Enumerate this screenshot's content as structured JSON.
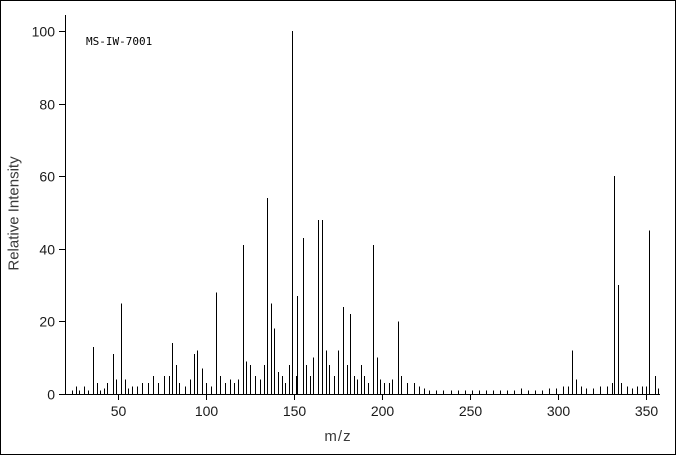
{
  "figure": {
    "background": "#ffffff",
    "line_color": "#000000",
    "tick_text_color": "#1a1a1a",
    "axis_label_color": "#3a3a3a"
  },
  "chart_data": {
    "type": "bar",
    "subtype": "mass-spectrum",
    "title": "",
    "annotation": "MS-IW-7001",
    "xlabel": "m/z",
    "ylabel": "Relative Intensity",
    "xlim": [
      20,
      358
    ],
    "ylim": [
      0,
      100
    ],
    "x_ticks": [
      50,
      100,
      150,
      200,
      250,
      300,
      350
    ],
    "y_ticks": [
      0,
      20,
      40,
      60,
      80,
      100
    ],
    "grid": false,
    "legend": false,
    "peaks": [
      [
        24,
        1
      ],
      [
        26,
        2
      ],
      [
        28,
        1
      ],
      [
        31,
        2
      ],
      [
        33,
        1
      ],
      [
        36,
        13
      ],
      [
        38,
        3
      ],
      [
        40,
        1
      ],
      [
        42,
        1.5
      ],
      [
        44,
        3
      ],
      [
        47,
        11
      ],
      [
        49,
        4
      ],
      [
        52,
        25
      ],
      [
        54,
        4
      ],
      [
        56,
        1.5
      ],
      [
        58,
        2
      ],
      [
        61,
        2
      ],
      [
        64,
        3
      ],
      [
        67,
        3
      ],
      [
        70,
        5
      ],
      [
        73,
        3
      ],
      [
        76,
        5
      ],
      [
        79,
        5
      ],
      [
        81,
        14
      ],
      [
        83,
        8
      ],
      [
        85,
        3
      ],
      [
        88,
        2
      ],
      [
        91,
        4
      ],
      [
        93,
        11
      ],
      [
        95,
        12
      ],
      [
        98,
        7
      ],
      [
        100,
        3
      ],
      [
        103,
        2
      ],
      [
        106,
        28
      ],
      [
        108,
        5
      ],
      [
        111,
        3
      ],
      [
        114,
        4
      ],
      [
        116,
        3
      ],
      [
        118,
        4
      ],
      [
        121,
        41
      ],
      [
        123,
        9
      ],
      [
        125,
        8
      ],
      [
        128,
        5
      ],
      [
        131,
        4
      ],
      [
        133,
        8
      ],
      [
        135,
        54
      ],
      [
        137,
        25
      ],
      [
        139,
        18
      ],
      [
        141,
        6
      ],
      [
        143,
        5
      ],
      [
        145,
        3
      ],
      [
        147,
        8
      ],
      [
        149,
        100
      ],
      [
        151,
        5
      ],
      [
        152,
        27
      ],
      [
        155,
        43
      ],
      [
        157,
        8
      ],
      [
        159,
        5
      ],
      [
        161,
        10
      ],
      [
        164,
        48
      ],
      [
        166,
        48
      ],
      [
        168,
        12
      ],
      [
        170,
        8
      ],
      [
        173,
        5
      ],
      [
        175,
        12
      ],
      [
        178,
        24
      ],
      [
        180,
        8
      ],
      [
        182,
        22
      ],
      [
        184,
        5
      ],
      [
        186,
        4
      ],
      [
        188,
        8
      ],
      [
        190,
        5
      ],
      [
        192,
        3
      ],
      [
        195,
        41
      ],
      [
        197,
        10
      ],
      [
        199,
        4
      ],
      [
        201,
        3
      ],
      [
        204,
        3
      ],
      [
        206,
        4
      ],
      [
        209,
        20
      ],
      [
        211,
        5
      ],
      [
        214,
        3
      ],
      [
        218,
        3
      ],
      [
        221,
        2
      ],
      [
        224,
        1.5
      ],
      [
        227,
        1
      ],
      [
        231,
        1
      ],
      [
        235,
        1
      ],
      [
        239,
        1
      ],
      [
        243,
        1
      ],
      [
        247,
        1
      ],
      [
        251,
        1
      ],
      [
        255,
        1
      ],
      [
        259,
        1
      ],
      [
        263,
        1
      ],
      [
        267,
        1
      ],
      [
        271,
        1
      ],
      [
        275,
        1
      ],
      [
        279,
        1.5
      ],
      [
        283,
        1
      ],
      [
        287,
        1
      ],
      [
        291,
        1
      ],
      [
        295,
        1.5
      ],
      [
        299,
        1.5
      ],
      [
        303,
        2
      ],
      [
        306,
        2
      ],
      [
        308,
        12
      ],
      [
        310,
        4
      ],
      [
        313,
        2
      ],
      [
        316,
        1.5
      ],
      [
        320,
        1.5
      ],
      [
        324,
        2
      ],
      [
        328,
        2
      ],
      [
        331,
        3
      ],
      [
        332,
        60
      ],
      [
        334,
        30
      ],
      [
        336,
        3
      ],
      [
        339,
        2
      ],
      [
        342,
        1.5
      ],
      [
        345,
        2
      ],
      [
        348,
        2
      ],
      [
        350,
        2
      ],
      [
        352,
        45
      ],
      [
        355,
        5
      ],
      [
        357,
        1.5
      ]
    ]
  }
}
